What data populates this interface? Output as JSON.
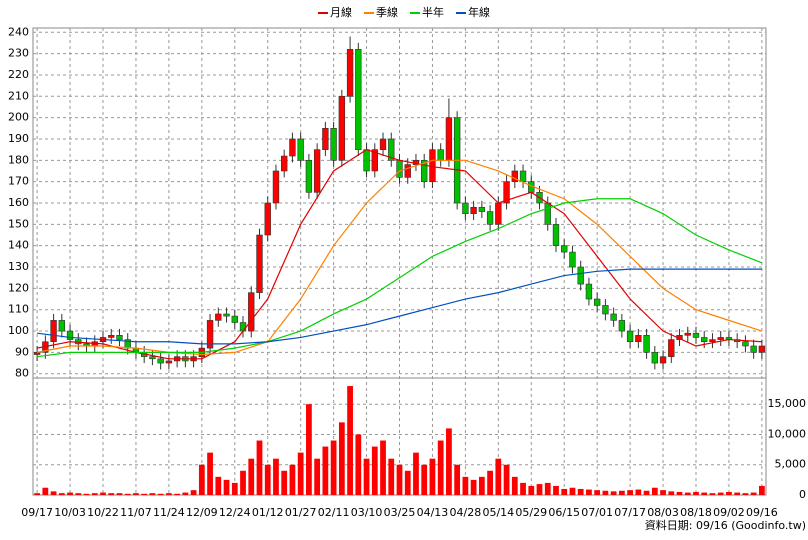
{
  "chart_data": {
    "type": "candlestick",
    "legend_position": "top",
    "footnote": "資料日期: 09/16  (Goodinfo.tw)",
    "categories": [
      "09/17",
      null,
      null,
      null,
      "10/03",
      null,
      null,
      null,
      "10/22",
      null,
      null,
      null,
      "11/07",
      null,
      null,
      null,
      "11/24",
      null,
      null,
      null,
      "12/09",
      null,
      null,
      null,
      "12/24",
      null,
      null,
      null,
      "01/12",
      null,
      null,
      null,
      "01/27",
      null,
      null,
      null,
      "02/11",
      null,
      null,
      null,
      "03/10",
      null,
      null,
      null,
      "03/25",
      null,
      null,
      null,
      "04/13",
      null,
      null,
      null,
      "04/28",
      null,
      null,
      null,
      "05/14",
      null,
      null,
      null,
      "05/29",
      null,
      null,
      null,
      "06/15",
      null,
      null,
      null,
      "07/01",
      null,
      null,
      null,
      "07/17",
      null,
      null,
      null,
      "08/03",
      null,
      null,
      null,
      "08/18",
      null,
      null,
      null,
      "09/02",
      null,
      null,
      null,
      "09/16"
    ],
    "open": [
      89,
      90,
      95,
      105,
      100,
      96,
      94,
      93,
      95,
      97,
      98,
      96,
      92,
      90,
      88,
      87,
      85,
      86,
      88,
      86,
      88,
      92,
      105,
      108,
      107,
      104,
      100,
      118,
      145,
      160,
      175,
      182,
      190,
      180,
      165,
      185,
      195,
      180,
      210,
      232,
      185,
      175,
      185,
      190,
      180,
      172,
      178,
      180,
      170,
      185,
      180,
      200,
      160,
      155,
      158,
      156,
      150,
      160,
      170,
      175,
      170,
      165,
      160,
      150,
      140,
      137,
      130,
      122,
      115,
      112,
      108,
      105,
      100,
      95,
      98,
      90,
      85,
      88,
      96,
      98,
      99,
      97,
      95,
      96,
      97,
      96,
      95,
      93,
      90
    ],
    "high": [
      93,
      98,
      108,
      108,
      103,
      99,
      97,
      98,
      100,
      101,
      101,
      99,
      95,
      93,
      91,
      90,
      89,
      91,
      91,
      91,
      95,
      108,
      111,
      111,
      110,
      107,
      121,
      148,
      163,
      178,
      185,
      193,
      193,
      183,
      188,
      198,
      198,
      213,
      238,
      235,
      188,
      188,
      193,
      193,
      183,
      181,
      183,
      183,
      188,
      188,
      209,
      203,
      163,
      161,
      161,
      159,
      163,
      173,
      178,
      178,
      173,
      168,
      163,
      153,
      143,
      140,
      133,
      125,
      118,
      115,
      111,
      108,
      103,
      101,
      101,
      93,
      91,
      99,
      101,
      102,
      102,
      100,
      99,
      100,
      100,
      99,
      98,
      96,
      96
    ],
    "low": [
      86,
      87,
      92,
      97,
      93,
      91,
      90,
      90,
      92,
      94,
      93,
      89,
      87,
      85,
      84,
      82,
      82,
      83,
      83,
      83,
      85,
      89,
      102,
      104,
      101,
      97,
      97,
      115,
      142,
      157,
      172,
      179,
      177,
      162,
      162,
      182,
      177,
      177,
      207,
      182,
      172,
      172,
      182,
      177,
      169,
      169,
      175,
      167,
      167,
      177,
      177,
      157,
      152,
      152,
      153,
      147,
      147,
      157,
      167,
      167,
      162,
      157,
      147,
      137,
      134,
      127,
      119,
      112,
      109,
      105,
      102,
      97,
      92,
      92,
      87,
      82,
      82,
      85,
      93,
      95,
      94,
      92,
      92,
      93,
      93,
      92,
      90,
      87,
      87
    ],
    "close": [
      90,
      95,
      105,
      100,
      96,
      94,
      93,
      95,
      97,
      98,
      96,
      92,
      90,
      88,
      87,
      85,
      86,
      88,
      86,
      88,
      92,
      105,
      108,
      107,
      104,
      100,
      118,
      145,
      160,
      175,
      182,
      190,
      180,
      165,
      185,
      195,
      180,
      210,
      232,
      185,
      175,
      185,
      190,
      180,
      172,
      178,
      180,
      170,
      185,
      180,
      200,
      160,
      155,
      158,
      156,
      150,
      160,
      170,
      175,
      170,
      165,
      160,
      150,
      140,
      137,
      130,
      122,
      115,
      112,
      108,
      105,
      100,
      95,
      98,
      90,
      85,
      88,
      96,
      98,
      99,
      97,
      95,
      96,
      97,
      96,
      95,
      93,
      90,
      93
    ],
    "up_color": "#ff0000",
    "down_color": "#00c000",
    "ylim": [
      78,
      242
    ],
    "yticks": [
      80,
      90,
      100,
      110,
      120,
      130,
      140,
      150,
      160,
      170,
      180,
      190,
      200,
      210,
      220,
      230,
      240
    ],
    "grid": true,
    "lines": {
      "x": [
        0,
        4,
        8,
        12,
        16,
        20,
        24,
        28,
        32,
        36,
        40,
        44,
        48,
        52,
        56,
        60,
        64,
        68,
        72,
        76,
        80,
        84,
        88
      ],
      "series": [
        {
          "name": "月線",
          "color": "#e00000",
          "values": [
            92,
            95,
            94,
            90,
            87,
            87,
            95,
            115,
            150,
            175,
            185,
            180,
            177,
            175,
            160,
            165,
            155,
            135,
            115,
            100,
            93,
            96,
            95
          ]
        },
        {
          "name": "季線",
          "color": "#ff7f00",
          "values": [
            90,
            93,
            93,
            92,
            90,
            89,
            90,
            95,
            115,
            140,
            160,
            175,
            180,
            180,
            175,
            168,
            162,
            150,
            135,
            120,
            110,
            105,
            100
          ]
        },
        {
          "name": "半年",
          "color": "#00d000",
          "values": [
            88,
            90,
            90,
            90,
            90,
            90,
            92,
            95,
            100,
            108,
            115,
            125,
            135,
            142,
            148,
            155,
            160,
            162,
            162,
            155,
            145,
            138,
            132
          ]
        },
        {
          "name": "年線",
          "color": "#0050c0",
          "values": [
            99,
            97,
            96,
            95,
            95,
            94,
            94,
            95,
            97,
            100,
            103,
            107,
            111,
            115,
            118,
            122,
            126,
            128,
            129,
            129,
            129,
            129,
            129
          ]
        }
      ]
    },
    "volume": {
      "color": "#ff0000",
      "values": [
        300,
        1200,
        600,
        300,
        400,
        300,
        200,
        300,
        400,
        300,
        300,
        200,
        300,
        200,
        300,
        200,
        300,
        200,
        400,
        800,
        5000,
        7000,
        3000,
        2500,
        2000,
        4000,
        6000,
        9000,
        5000,
        6000,
        4000,
        5000,
        7000,
        15000,
        6000,
        8000,
        9000,
        12000,
        18000,
        10000,
        6000,
        8000,
        9000,
        6000,
        5000,
        4000,
        7000,
        5000,
        6000,
        9000,
        11000,
        5000,
        3000,
        2500,
        3000,
        4000,
        6000,
        5000,
        3000,
        2000,
        1500,
        1800,
        2000,
        1500,
        1000,
        1200,
        1000,
        900,
        800,
        700,
        600,
        700,
        800,
        900,
        700,
        1200,
        800,
        600,
        500,
        400,
        500,
        400,
        300,
        400,
        500,
        400,
        300,
        400,
        1500
      ],
      "ylim": [
        0,
        19000
      ],
      "yticks": [
        0,
        {
          "value": 5000,
          "label": "5,000"
        },
        {
          "value": 10000,
          "label": "10,000"
        },
        {
          "value": 15000,
          "label": "15,000"
        }
      ]
    }
  }
}
